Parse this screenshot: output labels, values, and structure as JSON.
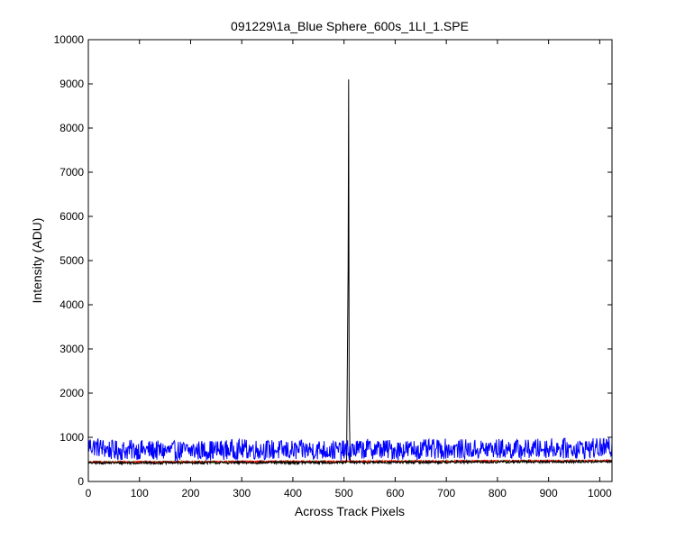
{
  "chart_data": {
    "type": "line",
    "title": "091229\\1a_Blue Sphere_600s_1LI_1.SPE",
    "xlabel": "Across Track Pixels",
    "ylabel": "Intensity (ADU)",
    "xlim": [
      0,
      1024
    ],
    "ylim": [
      0,
      10000
    ],
    "x_ticks": [
      0,
      100,
      200,
      300,
      400,
      500,
      600,
      700,
      800,
      900,
      1000
    ],
    "y_ticks": [
      0,
      1000,
      2000,
      3000,
      4000,
      5000,
      6000,
      7000,
      8000,
      9000,
      10000
    ],
    "grid": false,
    "legend": "none",
    "series": [
      {
        "color": "#0000ff",
        "baseline": 700,
        "noise_amplitude": 230,
        "points": [
          [
            0,
            820
          ],
          [
            50,
            700
          ],
          [
            100,
            720
          ],
          [
            150,
            690
          ],
          [
            200,
            700
          ],
          [
            250,
            710
          ],
          [
            300,
            730
          ],
          [
            350,
            720
          ],
          [
            400,
            700
          ],
          [
            450,
            720
          ],
          [
            500,
            700
          ],
          [
            550,
            740
          ],
          [
            600,
            720
          ],
          [
            650,
            720
          ],
          [
            700,
            740
          ],
          [
            750,
            720
          ],
          [
            800,
            740
          ],
          [
            850,
            720
          ],
          [
            900,
            760
          ],
          [
            950,
            740
          ],
          [
            1024,
            760
          ]
        ]
      },
      {
        "color": "#000000",
        "baseline": 430,
        "noise_amplitude": 30,
        "points": [
          [
            0,
            420
          ],
          [
            505,
            430
          ],
          [
            508,
            4850
          ],
          [
            509,
            9100
          ],
          [
            510,
            1850
          ],
          [
            512,
            430
          ],
          [
            1024,
            450
          ]
        ]
      },
      {
        "color": "#ff0000",
        "baseline": 440,
        "noise_amplitude": 20,
        "points": [
          [
            0,
            440
          ],
          [
            1024,
            470
          ]
        ]
      },
      {
        "color": "#00aa00",
        "baseline": 435,
        "noise_amplitude": 20,
        "points": [
          [
            0,
            435
          ],
          [
            1024,
            465
          ]
        ]
      }
    ]
  }
}
